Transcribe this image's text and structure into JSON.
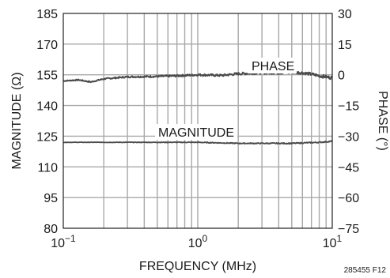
{
  "chart_data": {
    "type": "line",
    "xlabel": "FREQUENCY (MHz)",
    "ylabel": "MAGNITUDE (Ω)",
    "y2label": "PHASE (°)",
    "x_scale": "log",
    "xlim": [
      0.1,
      10
    ],
    "ylim": [
      80,
      185
    ],
    "y2lim": [
      -75,
      30
    ],
    "grid": true,
    "x_ticks": [
      {
        "base": "10",
        "exp": "−1",
        "value": 0.1
      },
      {
        "base": "10",
        "exp": "0",
        "value": 1
      },
      {
        "base": "10",
        "exp": "1",
        "value": 10
      }
    ],
    "y_ticks": [
      "80",
      "95",
      "110",
      "125",
      "140",
      "155",
      "170",
      "185"
    ],
    "y2_ticks": [
      "−75",
      "−60",
      "−45",
      "−30",
      "−15",
      "0",
      "15",
      "30"
    ],
    "series": [
      {
        "name": "PHASE",
        "axis": "right",
        "x": [
          0.1,
          0.13,
          0.16,
          0.2,
          0.3,
          0.5,
          0.7,
          1,
          1.5,
          2,
          3,
          4,
          5,
          6,
          7,
          8,
          9,
          10
        ],
        "y": [
          -3,
          -2.5,
          -3.5,
          -2,
          -1,
          -0.8,
          -0.5,
          0,
          -0.3,
          0.5,
          1,
          1,
          1.2,
          1,
          0.3,
          -0.5,
          -1,
          -1.5
        ]
      },
      {
        "name": "MAGNITUDE",
        "axis": "left",
        "x": [
          0.1,
          0.2,
          0.5,
          1,
          2,
          5,
          8,
          10
        ],
        "y": [
          122,
          122,
          122,
          122,
          121.5,
          121.5,
          122,
          122.5
        ]
      }
    ],
    "annotations": [
      "PHASE",
      "MAGNITUDE"
    ],
    "figure_id": "285455 F12",
    "colors": {
      "grid": "#a8a8a8",
      "line": "#4a4a4a",
      "frame": "#222222"
    }
  }
}
